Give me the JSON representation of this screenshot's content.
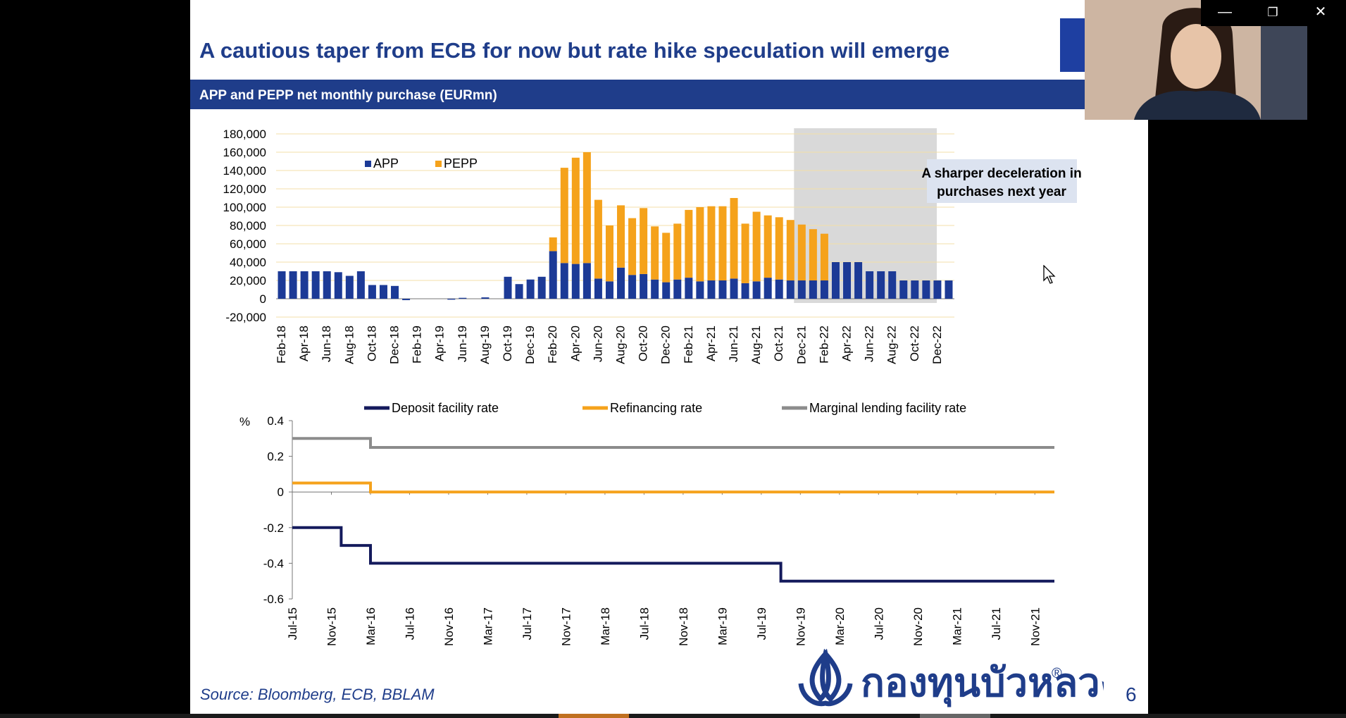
{
  "window": {
    "minimize_glyph": "—",
    "restore_glyph": "❐",
    "close_glyph": "✕"
  },
  "slide": {
    "title": "A cautious taper from ECB for now but rate hike speculation will emerge",
    "subheader": "APP and PEPP net monthly purchase (EURmn)",
    "source": "Source:  Bloomberg, ECB, BBLAM",
    "page_number": "6",
    "logo_text": "กองทุนบัวหลวง",
    "logo_mark": "®"
  },
  "colors": {
    "brand_blue": "#1f3d8a",
    "app": "#1c3a96",
    "pepp": "#f5a21b",
    "deposit": "#141a5c",
    "refinancing": "#f5a21b",
    "marginal": "#8c8c8c",
    "shade": "#d9d9d9",
    "annotation_bg": "#dce3f0"
  },
  "icons": {
    "minimize": "minimize-icon",
    "restore": "restore-icon",
    "close": "close-icon",
    "cursor": "mouse-cursor-icon",
    "eu_flag": "eu-flag-icon",
    "logo": "lotus-logo-icon"
  },
  "chart_data": [
    {
      "type": "bar",
      "stacked": true,
      "title": "APP and PEPP net monthly purchase (EURmn)",
      "categories": [
        "Feb-18",
        "Mar-18",
        "Apr-18",
        "May-18",
        "Jun-18",
        "Jul-18",
        "Aug-18",
        "Sep-18",
        "Oct-18",
        "Nov-18",
        "Dec-18",
        "Jan-19",
        "Feb-19",
        "Mar-19",
        "Apr-19",
        "May-19",
        "Jun-19",
        "Jul-19",
        "Aug-19",
        "Sep-19",
        "Oct-19",
        "Nov-19",
        "Dec-19",
        "Jan-20",
        "Feb-20",
        "Mar-20",
        "Apr-20",
        "May-20",
        "Jun-20",
        "Jul-20",
        "Aug-20",
        "Sep-20",
        "Oct-20",
        "Nov-20",
        "Dec-20",
        "Jan-21",
        "Feb-21",
        "Mar-21",
        "Apr-21",
        "May-21",
        "Jun-21",
        "Jul-21",
        "Aug-21",
        "Sep-21",
        "Oct-21",
        "Nov-21",
        "Dec-21",
        "Jan-22",
        "Feb-22",
        "Mar-22",
        "Apr-22",
        "May-22",
        "Jun-22",
        "Jul-22",
        "Aug-22",
        "Sep-22",
        "Oct-22",
        "Nov-22",
        "Dec-22",
        "Jan-23"
      ],
      "tick_labels": [
        "Feb-18",
        "Apr-18",
        "Jun-18",
        "Aug-18",
        "Oct-18",
        "Dec-18",
        "Feb-19",
        "Apr-19",
        "Jun-19",
        "Aug-19",
        "Oct-19",
        "Dec-19",
        "Feb-20",
        "Apr-20",
        "Jun-20",
        "Aug-20",
        "Oct-20",
        "Dec-20",
        "Feb-21",
        "Apr-21",
        "Jun-21",
        "Aug-21",
        "Oct-21",
        "Dec-21",
        "Feb-22",
        "Apr-22",
        "Jun-22",
        "Aug-22",
        "Oct-22",
        "Dec-22"
      ],
      "series": [
        {
          "name": "APP",
          "values": [
            30000,
            30000,
            30000,
            30000,
            30000,
            29000,
            25000,
            30000,
            15000,
            15000,
            14000,
            -1500,
            0,
            0,
            0,
            -1000,
            1000,
            0,
            1500,
            0,
            24000,
            16000,
            21000,
            24000,
            52000,
            39000,
            38000,
            39000,
            22000,
            19000,
            34000,
            26000,
            27000,
            21000,
            18000,
            21000,
            23000,
            19000,
            20000,
            20000,
            22000,
            17000,
            19000,
            23000,
            21000,
            20000,
            20000,
            20000,
            20000,
            40000,
            40000,
            40000,
            30000,
            30000,
            30000,
            20000,
            20000,
            20000,
            20000,
            20000
          ]
        },
        {
          "name": "PEPP",
          "values": [
            0,
            0,
            0,
            0,
            0,
            0,
            0,
            0,
            0,
            0,
            0,
            0,
            0,
            0,
            0,
            0,
            0,
            0,
            0,
            0,
            0,
            0,
            0,
            0,
            15000,
            104000,
            116000,
            121000,
            86000,
            61000,
            68000,
            62000,
            72000,
            58000,
            54000,
            61000,
            74000,
            81000,
            81000,
            81000,
            88000,
            65000,
            76000,
            68000,
            68000,
            66000,
            61000,
            56000,
            51000,
            0,
            0,
            0,
            0,
            0,
            0,
            0,
            0,
            0,
            0,
            0
          ]
        }
      ],
      "yticks": [
        -20000,
        0,
        20000,
        40000,
        60000,
        80000,
        100000,
        120000,
        140000,
        160000,
        180000
      ],
      "ytick_labels": [
        "-20,000",
        "0",
        "20,000",
        "40,000",
        "60,000",
        "80,000",
        "100,000",
        "120,000",
        "140,000",
        "160,000",
        "180,000"
      ],
      "ylim": [
        -20000,
        180000
      ],
      "legend": [
        "APP",
        "PEPP"
      ],
      "legend_position": "top-left",
      "shaded_from": "Dec-21",
      "annotation": [
        "A sharper deceleration in",
        "purchases next year"
      ],
      "grid": true
    },
    {
      "type": "line",
      "x_start": "2015-07",
      "x_end": "2022-01",
      "tick_labels": [
        "Jul-15",
        "Nov-15",
        "Mar-16",
        "Jul-16",
        "Nov-16",
        "Mar-17",
        "Jul-17",
        "Nov-17",
        "Mar-18",
        "Jul-18",
        "Nov-18",
        "Mar-19",
        "Jul-19",
        "Nov-19",
        "Mar-20",
        "Jul-20",
        "Nov-20",
        "Mar-21",
        "Jul-21",
        "Nov-21"
      ],
      "ylabel": "%",
      "yticks": [
        -0.6,
        -0.4,
        -0.2,
        0,
        0.2,
        0.4
      ],
      "ytick_labels": [
        "-0.6",
        "-0.4",
        "-0.2",
        "0",
        "0.2",
        "0.4"
      ],
      "ylim": [
        -0.6,
        0.4
      ],
      "legend_position": "top",
      "series": [
        {
          "name": "Deposit facility  rate",
          "points": [
            [
              "2015-07",
              -0.2
            ],
            [
              "2015-12",
              -0.2
            ],
            [
              "2015-12",
              -0.3
            ],
            [
              "2016-03",
              -0.3
            ],
            [
              "2016-03",
              -0.4
            ],
            [
              "2019-09",
              -0.4
            ],
            [
              "2019-09",
              -0.5
            ],
            [
              "2022-01",
              -0.5
            ]
          ]
        },
        {
          "name": "Refinancing rate",
          "points": [
            [
              "2015-07",
              0.05
            ],
            [
              "2016-03",
              0.05
            ],
            [
              "2016-03",
              0
            ],
            [
              "2022-01",
              0
            ]
          ]
        },
        {
          "name": "Marginal lending facility rate",
          "points": [
            [
              "2015-07",
              0.3
            ],
            [
              "2016-03",
              0.3
            ],
            [
              "2016-03",
              0.25
            ],
            [
              "2022-01",
              0.25
            ]
          ]
        }
      ]
    }
  ]
}
